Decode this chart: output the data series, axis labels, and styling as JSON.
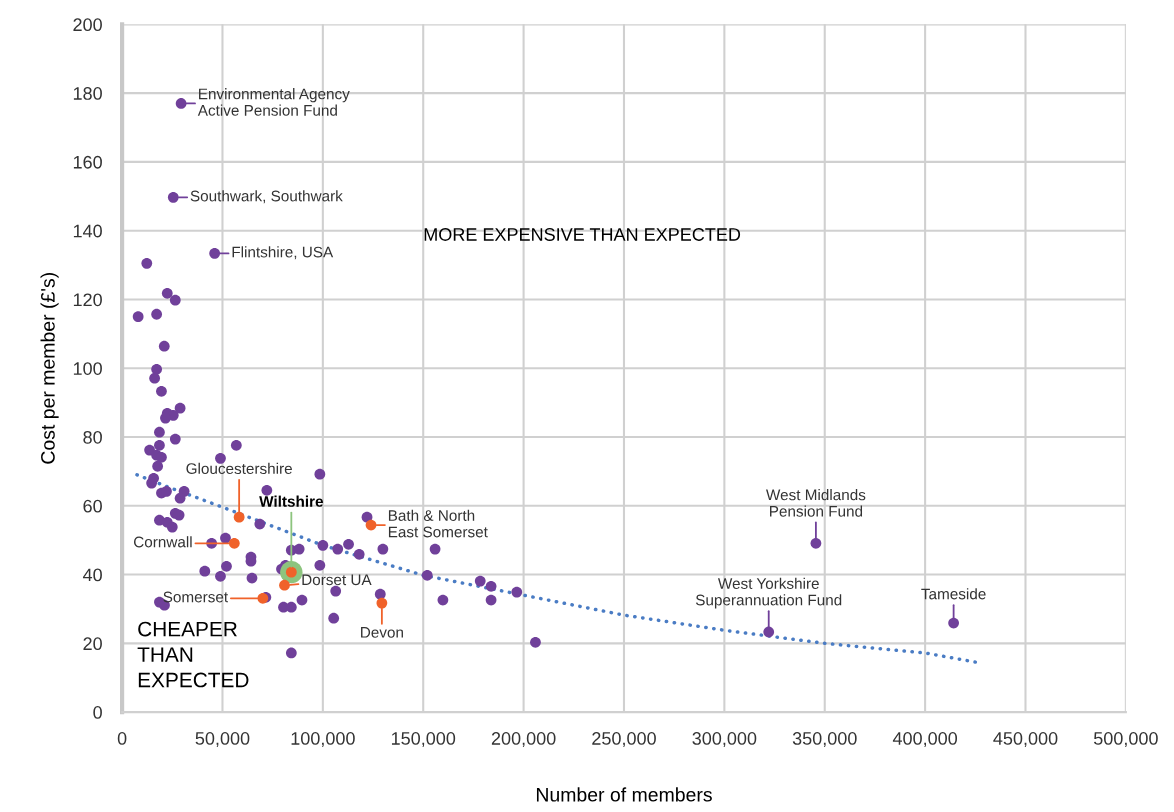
{
  "chart_data": {
    "type": "scatter",
    "xlabel": "Number of members",
    "ylabel": "Cost per member (£'s)",
    "xlim": [
      0,
      500000
    ],
    "ylim": [
      0,
      200
    ],
    "xticks": [
      0,
      {
        "value": 50000,
        "label": "50,000"
      },
      {
        "value": 100000,
        "label": "100,000"
      },
      {
        "value": 150000,
        "label": "150,000"
      },
      {
        "value": 200000,
        "label": "200,000"
      },
      {
        "value": 250000,
        "label": "250,000"
      },
      {
        "value": 300000,
        "label": "300,000"
      },
      {
        "value": 350000,
        "label": "350,000"
      },
      {
        "value": 400000,
        "label": "400,000"
      },
      {
        "value": 450000,
        "label": "450,000"
      },
      {
        "value": 500000,
        "label": "500,000"
      }
    ],
    "yticks": [
      0,
      20,
      40,
      60,
      80,
      100,
      120,
      140,
      160,
      180,
      200
    ],
    "grid": true,
    "legend": false,
    "marker": "circle",
    "series": [
      {
        "color": "#70409a",
        "x": [
          8000,
          12300,
          17200,
          22500,
          26500,
          21000,
          17200,
          16200,
          19600,
          28900,
          22500,
          25500,
          21600,
          18600,
          26500,
          13700,
          18600,
          17200,
          19600,
          17700,
          15700,
          14700,
          30900,
          19600,
          22100,
          28900,
          26500,
          28400,
          18600,
          22500,
          25000,
          49000,
          56900,
          72100,
          98500,
          18600,
          21100,
          41200,
          49000,
          44600,
          51500,
          52000,
          64200,
          64200,
          64700,
          68600,
          71600,
          79400,
          80400,
          84300,
          84300,
          88200,
          89600,
          81400,
          84300,
          100000,
          98500,
          106400,
          105400,
          107400,
          112800,
          118100,
          122000,
          129900,
          128600,
          155900,
          152000,
          159800,
          178400,
          183800,
          183800,
          196600,
          205900,
          322100,
          345600,
          414200,
          29400,
          25500,
          46100
        ],
        "values": [
          115,
          130.5,
          115.7,
          121.8,
          119.8,
          106.4,
          99.7,
          97.1,
          93.3,
          88.4,
          86.9,
          86.3,
          85.5,
          81.4,
          79.4,
          76.2,
          77.6,
          74.7,
          74.1,
          71.5,
          68,
          66.6,
          64.2,
          63.7,
          64.2,
          62.2,
          57.8,
          57.3,
          55.8,
          55.2,
          53.8,
          73.8,
          77.6,
          64.5,
          69.2,
          32,
          31.1,
          41,
          39.5,
          49.1,
          50.6,
          42.4,
          45.1,
          43.9,
          39,
          54.7,
          33.4,
          41.6,
          30.5,
          30.5,
          47.1,
          47.4,
          32.6,
          42.7,
          17.2,
          48.5,
          42.7,
          35.2,
          27.3,
          47.4,
          48.8,
          45.9,
          56.7,
          47.4,
          34.3,
          47.4,
          39.8,
          32.6,
          38.1,
          36.6,
          32.6,
          34.9,
          20.3,
          23.3,
          49.1,
          25.9,
          177,
          149.7,
          133.4
        ]
      },
      {
        "color": "#8dc47e",
        "x": [
          84300
        ],
        "values": [
          40.7
        ]
      },
      {
        "color": "#f0622a",
        "x": [
          58300,
          55900,
          84300,
          80900,
          70100,
          124000,
          129400
        ],
        "values": [
          56.7,
          49.1,
          40.7,
          36.9,
          33.1,
          54.4,
          31.7
        ]
      },
      {
        "type": "line",
        "color": "#4a7cc4",
        "line_style": "dotted",
        "marker": "none",
        "x": [
          7400,
          25000,
          50000,
          100000,
          150000,
          200000,
          250000,
          300000,
          350000,
          400000,
          425500
        ],
        "values": [
          69,
          65,
          59.6,
          48.5,
          39.8,
          34,
          28.2,
          23.8,
          20,
          17.2,
          14.5
        ]
      }
    ],
    "annotations": [
      {
        "text": "Environmental Agency\nActive Pension Fund",
        "x": 29400,
        "y": 177
      },
      {
        "text": "Southwark, Southwark",
        "x": 25500,
        "y": 149.7
      },
      {
        "text": "Flintshire, USA",
        "x": 46100,
        "y": 133.4
      },
      {
        "text": "Gloucestershire",
        "x": 58300,
        "y": 56.7
      },
      {
        "text": "Cornwall",
        "x": 55900,
        "y": 49.1
      },
      {
        "text": "Wiltshire",
        "x": 84300,
        "y": 40.7
      },
      {
        "text": "Dorset UA",
        "x": 80900,
        "y": 36.9
      },
      {
        "text": "Somerset",
        "x": 70100,
        "y": 33.1
      },
      {
        "text": "Bath & North\nEast Somerset",
        "x": 124000,
        "y": 54.4
      },
      {
        "text": "Devon",
        "x": 129400,
        "y": 31.7
      },
      {
        "text": "West Midlands\nPension Fund",
        "x": 345600,
        "y": 49.1
      },
      {
        "text": "West Yorkshire\nSuperannuation Fund",
        "x": 322100,
        "y": 23.3
      },
      {
        "text": "Tameside",
        "x": 414200,
        "y": 25.9
      },
      "MORE EXPENSIVE THAN EXPECTED",
      "CHEAPER\nTHAN\nEXPECTED"
    ]
  }
}
